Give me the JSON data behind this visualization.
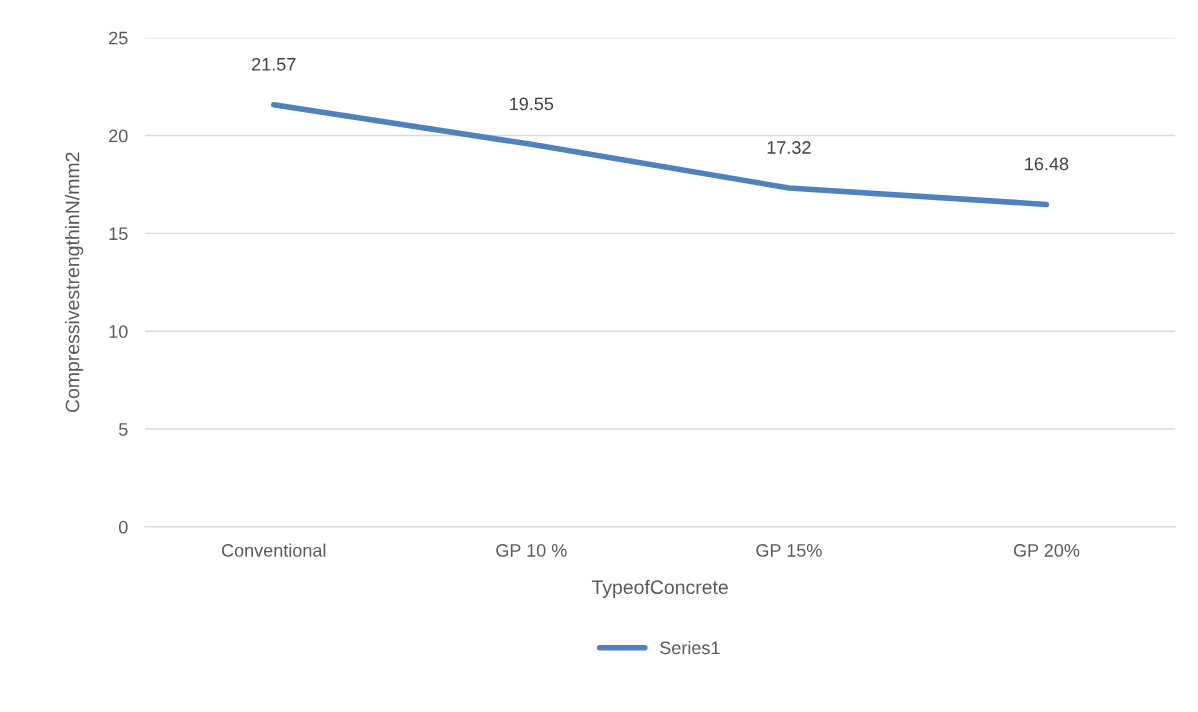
{
  "chart_data": {
    "type": "line",
    "categories": [
      "Conventional",
      "GP 10 %",
      "GP 15%",
      "GP 20%"
    ],
    "series": [
      {
        "name": "Series1",
        "color": "#4f81bd",
        "values": [
          21.57,
          19.55,
          17.32,
          16.48
        ]
      }
    ],
    "ylim": [
      0,
      25
    ],
    "yticks": [
      0,
      5,
      10,
      15,
      20,
      25
    ],
    "xlabel": "TypeofConcrete",
    "ylabel": "CompressivestrengthinN/mm2",
    "grid": "y",
    "legend": "bottom",
    "data_labels": true,
    "marker": "none",
    "line_style": "solid"
  }
}
